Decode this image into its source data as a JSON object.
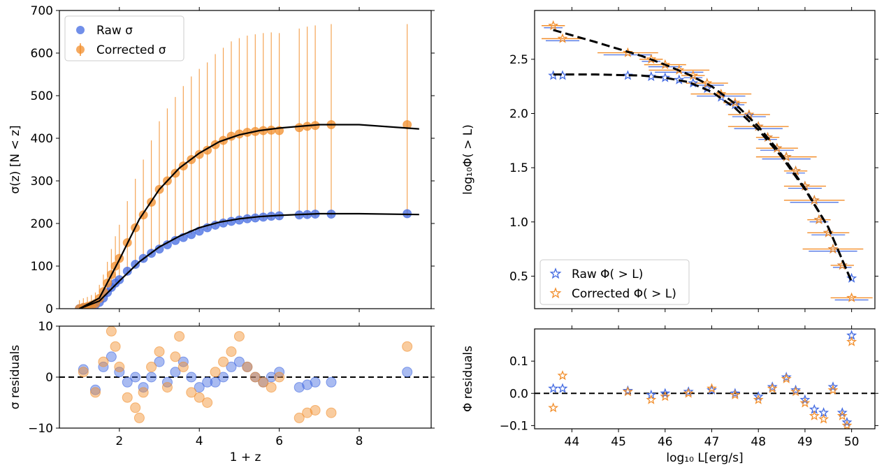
{
  "colors": {
    "raw": "#4169e1",
    "corrected": "#f28e2b",
    "fit": "#000000"
  },
  "chart_data": [
    {
      "type": "scatter",
      "panel": "sigma-main",
      "title": "",
      "xlabel": "",
      "ylabel": "σ(z) [N < z]",
      "xlim": [
        0.5,
        9.8
      ],
      "ylim": [
        0,
        700
      ],
      "xticks": [
        2,
        4,
        6,
        8
      ],
      "yticks": [
        0,
        100,
        200,
        300,
        400,
        500,
        600,
        700
      ],
      "legend": {
        "placement": "top-left",
        "entries": [
          "Raw σ",
          "Corrected σ"
        ]
      },
      "fit_curves": [
        {
          "name": "Raw σ fit",
          "x": [
            1.0,
            1.5,
            2.0,
            2.5,
            3.0,
            3.5,
            4.0,
            4.5,
            5.0,
            5.5,
            6.0,
            7.0,
            8.0,
            9.5
          ],
          "y": [
            0,
            18,
            65,
            110,
            145,
            170,
            190,
            203,
            211,
            216,
            219,
            223,
            223,
            221
          ]
        },
        {
          "name": "Corrected σ fit",
          "x": [
            1.0,
            1.5,
            2.0,
            2.5,
            3.0,
            3.5,
            4.0,
            4.5,
            5.0,
            5.5,
            6.0,
            7.0,
            8.0,
            9.5
          ],
          "y": [
            0,
            25,
            115,
            210,
            280,
            330,
            365,
            392,
            408,
            418,
            424,
            432,
            432,
            422
          ]
        }
      ],
      "series": [
        {
          "name": "Raw σ",
          "x": [
            1.0,
            1.1,
            1.2,
            1.3,
            1.4,
            1.5,
            1.6,
            1.7,
            1.8,
            1.9,
            2.0,
            2.2,
            2.4,
            2.6,
            2.8,
            3.0,
            3.2,
            3.4,
            3.6,
            3.8,
            4.0,
            4.2,
            4.4,
            4.6,
            4.8,
            5.0,
            5.2,
            5.4,
            5.6,
            5.8,
            6.0,
            6.5,
            6.7,
            6.9,
            7.3,
            9.2
          ],
          "y": [
            0,
            2,
            3,
            5,
            9,
            15,
            25,
            38,
            50,
            60,
            68,
            88,
            104,
            118,
            130,
            140,
            150,
            160,
            167,
            174,
            182,
            190,
            196,
            201,
            205,
            208,
            211,
            213,
            215,
            217,
            218,
            220,
            221,
            222,
            222,
            223
          ]
        },
        {
          "name": "Corrected σ",
          "x": [
            1.0,
            1.1,
            1.2,
            1.3,
            1.4,
            1.5,
            1.6,
            1.7,
            1.8,
            1.9,
            2.0,
            2.2,
            2.4,
            2.6,
            2.8,
            3.0,
            3.2,
            3.4,
            3.6,
            3.8,
            4.0,
            4.2,
            4.4,
            4.6,
            4.8,
            5.0,
            5.2,
            5.4,
            5.6,
            5.8,
            6.0,
            6.5,
            6.7,
            6.9,
            7.3,
            9.2
          ],
          "y": [
            0,
            3,
            5,
            8,
            12,
            24,
            40,
            60,
            80,
            100,
            118,
            155,
            190,
            220,
            250,
            280,
            300,
            318,
            335,
            350,
            362,
            372,
            385,
            395,
            405,
            410,
            414,
            416,
            418,
            419,
            418,
            425,
            428,
            430,
            432,
            432
          ]
        }
      ]
    },
    {
      "type": "scatter",
      "panel": "sigma-residuals",
      "title": "",
      "xlabel": "1 + z",
      "ylabel": "σ residuals",
      "xlim": [
        0.5,
        9.8
      ],
      "ylim": [
        -10,
        10
      ],
      "xticks": [
        2,
        4,
        6,
        8
      ],
      "yticks": [
        -10,
        0,
        10
      ],
      "reference_line": 0,
      "series": [
        {
          "name": "Raw σ",
          "x": [
            1.1,
            1.4,
            1.6,
            1.8,
            2.0,
            2.2,
            2.4,
            2.6,
            2.8,
            3.0,
            3.2,
            3.4,
            3.6,
            3.8,
            4.0,
            4.2,
            4.4,
            4.6,
            4.8,
            5.0,
            5.2,
            5.4,
            5.6,
            5.8,
            6.0,
            6.5,
            6.7,
            6.9,
            7.3,
            9.2
          ],
          "y": [
            1.5,
            -2.5,
            2,
            4,
            1,
            -1,
            0,
            -2,
            0,
            3,
            -1,
            1,
            3,
            0,
            -2,
            -1,
            -1,
            0,
            2,
            3,
            2,
            0,
            -1,
            0,
            1,
            -2,
            -1.5,
            -1,
            -1,
            1
          ]
        },
        {
          "name": "Corrected σ",
          "x": [
            1.1,
            1.4,
            1.6,
            1.8,
            1.9,
            2.0,
            2.2,
            2.4,
            2.5,
            2.6,
            2.8,
            3.0,
            3.2,
            3.4,
            3.5,
            3.6,
            3.8,
            4.0,
            4.2,
            4.4,
            4.6,
            4.8,
            5.0,
            5.2,
            5.4,
            5.6,
            5.8,
            6.0,
            6.5,
            6.7,
            6.9,
            7.3,
            9.2
          ],
          "y": [
            1,
            -3,
            3,
            9,
            6,
            2,
            -4,
            -6,
            -8,
            -3,
            2,
            5,
            -2,
            4,
            8,
            2,
            -3,
            -4,
            -5,
            1,
            3,
            5,
            8,
            2,
            0,
            -1,
            -2,
            0,
            -8,
            -7,
            -6.5,
            -7,
            6
          ]
        }
      ]
    },
    {
      "type": "scatter",
      "panel": "phi-main",
      "title": "",
      "xlabel": "",
      "ylabel": "log₁₀Φ( > L)",
      "xlim": [
        43.2,
        50.5
      ],
      "ylim": [
        0.2,
        2.95
      ],
      "xticks": [
        44,
        45,
        46,
        47,
        48,
        49,
        50
      ],
      "yticks": [
        0.5,
        1.0,
        1.5,
        2.0,
        2.5
      ],
      "ytick_labels": [
        "0.5",
        "1.0",
        "1.5",
        "2.0",
        "2.5"
      ],
      "legend": {
        "placement": "bottom-left",
        "entries": [
          "Raw Φ( > L)",
          "Corrected Φ( > L)"
        ]
      },
      "fit_curves": [
        {
          "name": "Raw Φ fit",
          "x": [
            43.6,
            44.5,
            45.5,
            46.0,
            46.5,
            47.0,
            47.5,
            48.0,
            48.5,
            49.0,
            49.5,
            50.0
          ],
          "y": [
            2.36,
            2.36,
            2.35,
            2.33,
            2.29,
            2.2,
            2.05,
            1.85,
            1.6,
            1.3,
            0.95,
            0.45
          ]
        },
        {
          "name": "Corrected Φ fit",
          "x": [
            43.6,
            44.5,
            45.5,
            46.0,
            46.5,
            47.0,
            47.5,
            48.0,
            48.5,
            49.0,
            49.5,
            50.0
          ],
          "y": [
            2.77,
            2.66,
            2.53,
            2.45,
            2.36,
            2.25,
            2.09,
            1.88,
            1.62,
            1.31,
            0.95,
            0.45
          ]
        }
      ],
      "series": [
        {
          "name": "Raw Φ( > L)",
          "x": [
            43.6,
            43.8,
            45.2,
            45.7,
            46.0,
            46.3,
            46.6,
            46.9,
            47.2,
            47.5,
            47.8,
            48.0,
            48.2,
            48.4,
            48.6,
            48.8,
            49.0,
            49.2,
            49.3,
            49.5,
            49.6,
            49.8,
            50.0
          ],
          "y": [
            2.35,
            2.35,
            2.35,
            2.34,
            2.33,
            2.31,
            2.28,
            2.23,
            2.15,
            2.08,
            1.98,
            1.88,
            1.78,
            1.68,
            1.6,
            1.47,
            1.33,
            1.2,
            1.02,
            0.9,
            0.75,
            0.6,
            0.48
          ]
        },
        {
          "name": "Corrected Φ( > L)",
          "x": [
            43.6,
            43.8,
            45.2,
            45.7,
            46.0,
            46.3,
            46.6,
            46.9,
            47.2,
            47.5,
            47.8,
            48.0,
            48.2,
            48.4,
            48.6,
            48.8,
            49.0,
            49.2,
            49.3,
            49.5,
            49.6,
            49.8,
            50.0
          ],
          "y": [
            2.81,
            2.69,
            2.56,
            2.5,
            2.45,
            2.4,
            2.35,
            2.28,
            2.18,
            2.1,
            1.99,
            1.88,
            1.78,
            1.68,
            1.6,
            1.47,
            1.33,
            1.2,
            1.02,
            0.9,
            0.75,
            0.6,
            0.3
          ]
        }
      ]
    },
    {
      "type": "scatter",
      "panel": "phi-residuals",
      "title": "",
      "xlabel": "log₁₀ L[erg/s]",
      "ylabel": "Φ residuals",
      "xlim": [
        43.2,
        50.5
      ],
      "ylim": [
        -0.11,
        0.2
      ],
      "xticks": [
        44,
        45,
        46,
        47,
        48,
        49,
        50
      ],
      "yticks": [
        -0.1,
        0.0,
        0.1
      ],
      "ytick_labels": [
        "−0.1",
        "0.0",
        "0.1"
      ],
      "reference_line": 0,
      "series": [
        {
          "name": "Raw Φ( > L)",
          "x": [
            43.6,
            43.8,
            45.2,
            45.7,
            46.0,
            46.5,
            47.0,
            47.5,
            48.0,
            48.3,
            48.6,
            48.8,
            49.0,
            49.2,
            49.4,
            49.6,
            49.8,
            49.9,
            50.0
          ],
          "y": [
            0.015,
            0.015,
            0.008,
            -0.005,
            0.0,
            0.005,
            0.01,
            0.0,
            -0.01,
            0.02,
            0.05,
            0.01,
            -0.02,
            -0.05,
            -0.06,
            0.02,
            -0.06,
            -0.09,
            0.18
          ]
        },
        {
          "name": "Corrected Φ( > L)",
          "x": [
            43.6,
            43.8,
            45.2,
            45.7,
            46.0,
            46.5,
            47.0,
            47.5,
            48.0,
            48.3,
            48.6,
            48.8,
            49.0,
            49.2,
            49.4,
            49.6,
            49.8,
            49.9,
            50.0
          ],
          "y": [
            -0.045,
            0.055,
            0.005,
            -0.02,
            -0.01,
            0.0,
            0.015,
            -0.005,
            -0.02,
            0.015,
            0.045,
            0.005,
            -0.03,
            -0.07,
            -0.08,
            0.01,
            -0.07,
            -0.1,
            0.16
          ]
        }
      ]
    }
  ]
}
